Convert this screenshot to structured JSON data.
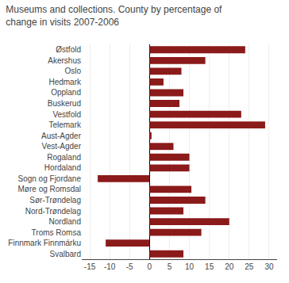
{
  "chart_data": {
    "type": "bar",
    "orientation": "horizontal",
    "title": "Museums and collections. County by percentage of\nchange in visits 2007-2006",
    "categories": [
      "Østfold",
      "Akershus",
      "Oslo",
      "Hedmark",
      "Oppland",
      "Buskerud",
      "Vestfold",
      "Telemark",
      "Aust-Agder",
      "Vest-Agder",
      "Rogaland",
      "Hordaland",
      "Sogn og Fjordane",
      "Møre og Romsdal",
      "Sør-Trøndelag",
      "Nord-Trøndelag",
      "Nordland",
      "Troms Romsa",
      "Finnmark Finnmárku",
      "Svalbard"
    ],
    "values": [
      24,
      14,
      8,
      3.5,
      8.5,
      7.5,
      23,
      29,
      0.5,
      6,
      10,
      10,
      -13,
      10.5,
      14,
      8.5,
      20,
      13,
      -11,
      8.5
    ],
    "color": "#8B1A1A",
    "xlim": [
      -17,
      32
    ],
    "xticks": [
      -15,
      -10,
      -5,
      0,
      5,
      10,
      15,
      20,
      25,
      30
    ],
    "grid": true
  }
}
